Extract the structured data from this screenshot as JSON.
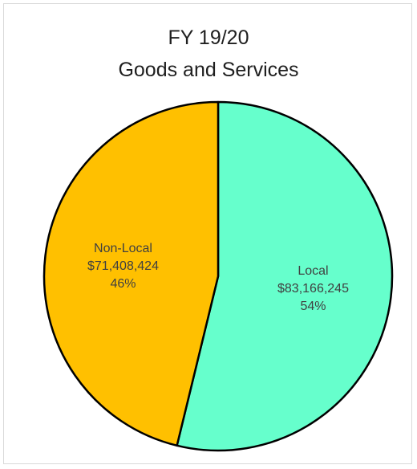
{
  "chart_data": {
    "type": "pie",
    "title_lines": [
      "FY 19/20",
      "Goods and Services"
    ],
    "slices": [
      {
        "name": "Local",
        "value": 83166245,
        "value_label": "$83,166,245",
        "percent_label": "54%",
        "color": "#66ffcc"
      },
      {
        "name": "Non-Local",
        "value": 71408424,
        "value_label": "$71,408,424",
        "percent_label": "46%",
        "color": "#ffc000"
      }
    ],
    "legend": "none"
  }
}
